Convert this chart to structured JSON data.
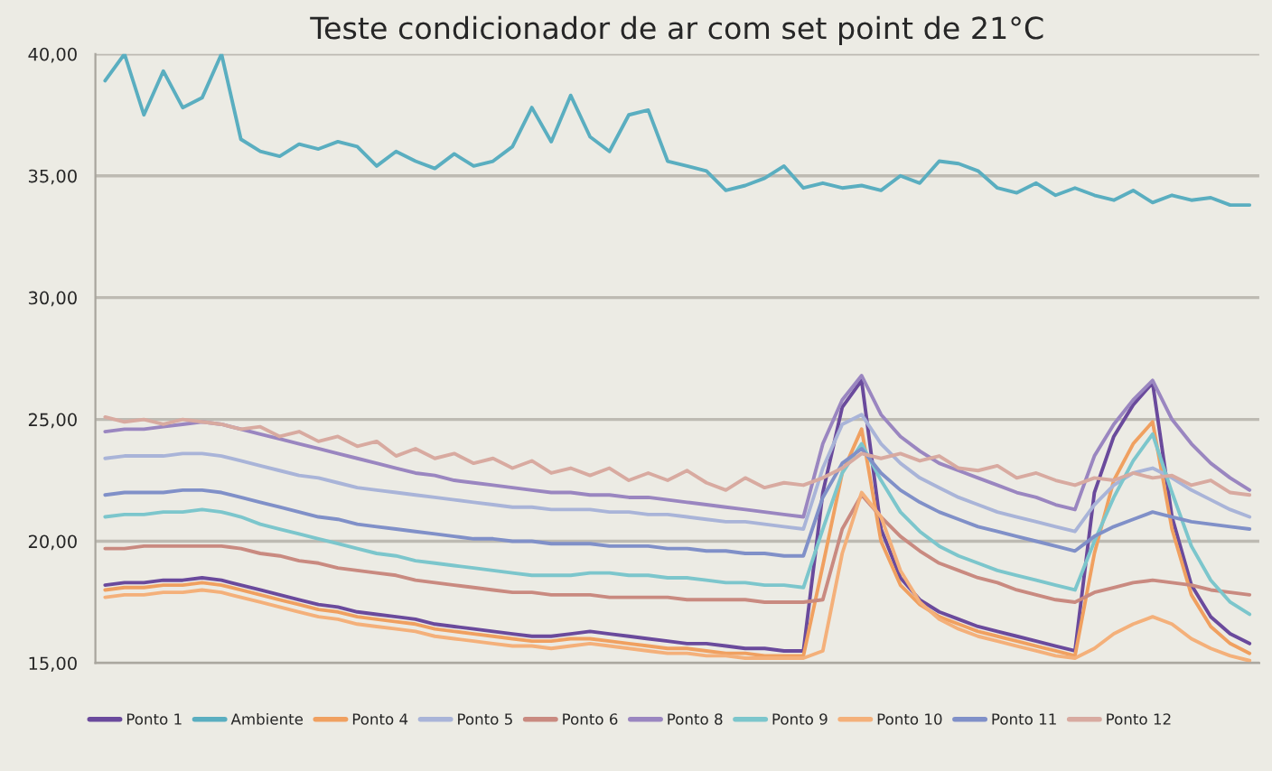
{
  "chart_data": {
    "type": "line",
    "title": "Teste condicionador de ar com set point de 21°C",
    "categories": [
      null,
      null,
      null,
      null,
      null,
      null,
      null,
      null,
      null,
      null,
      null,
      null,
      null,
      null,
      null,
      null,
      null,
      null,
      null,
      null,
      null,
      null,
      null,
      null,
      null,
      null,
      null,
      null,
      null,
      null,
      null,
      null,
      null,
      null,
      null,
      null,
      null,
      null,
      null,
      null,
      null,
      null,
      null,
      null,
      null,
      null,
      null,
      null,
      null,
      null,
      null,
      null,
      null,
      null,
      null,
      null,
      null,
      null,
      null,
      null
    ],
    "ylim": [
      15,
      40
    ],
    "yticks": [
      {
        "value": 15,
        "label": "15,00"
      },
      {
        "value": 20,
        "label": "20,00"
      },
      {
        "value": 25,
        "label": "25,00"
      },
      {
        "value": 30,
        "label": "30,00"
      },
      {
        "value": 35,
        "label": "35,00"
      },
      {
        "value": 40,
        "label": "40,00"
      }
    ],
    "grid": "y",
    "legend": "bottom",
    "marker": "none",
    "line_style": "solid",
    "series": [
      {
        "name": "Ponto 1",
        "color": "#6a4a9c",
        "values": [
          18.2,
          18.3,
          18.3,
          18.4,
          18.4,
          18.5,
          18.4,
          18.2,
          18.0,
          17.8,
          17.6,
          17.4,
          17.3,
          17.1,
          17.0,
          16.9,
          16.8,
          16.6,
          16.5,
          16.4,
          16.3,
          16.2,
          16.1,
          16.1,
          16.2,
          16.3,
          16.2,
          16.1,
          16.0,
          15.9,
          15.8,
          15.8,
          15.7,
          15.6,
          15.6,
          15.5,
          15.5,
          22.0,
          25.5,
          26.6,
          20.5,
          18.5,
          17.6,
          17.1,
          16.8,
          16.5,
          16.3,
          16.1,
          15.9,
          15.7,
          15.5,
          22.0,
          24.3,
          25.6,
          26.5,
          21.0,
          18.2,
          16.9,
          16.2,
          15.8
        ]
      },
      {
        "name": "Ambiente",
        "color": "#5aaec0",
        "values": [
          38.9,
          40,
          37.5,
          39.3,
          37.8,
          38.2,
          40,
          36.5,
          36,
          35.8,
          36.3,
          36.1,
          36.4,
          36.2,
          35.4,
          36,
          35.6,
          35.3,
          35.9,
          35.4,
          35.6,
          36.2,
          37.8,
          36.4,
          38.3,
          36.6,
          36,
          37.5,
          37.7,
          35.6,
          35.4,
          35.2,
          34.4,
          34.6,
          34.9,
          35.4,
          34.5,
          34.7,
          34.5,
          34.6,
          34.4,
          35,
          34.7,
          35.6,
          35.5,
          35.2,
          34.5,
          34.3,
          34.7,
          34.2,
          34.5,
          34.2,
          34.0,
          34.4,
          33.9,
          34.2,
          34.0,
          34.1,
          33.8,
          33.8
        ]
      },
      {
        "name": "Ponto 4",
        "color": "#f0a060",
        "values": [
          18.0,
          18.1,
          18.1,
          18.2,
          18.2,
          18.3,
          18.2,
          18.0,
          17.8,
          17.6,
          17.4,
          17.2,
          17.1,
          16.9,
          16.8,
          16.7,
          16.6,
          16.4,
          16.3,
          16.2,
          16.1,
          16.0,
          15.9,
          15.9,
          16.0,
          16.0,
          15.9,
          15.8,
          15.7,
          15.6,
          15.6,
          15.5,
          15.4,
          15.4,
          15.3,
          15.3,
          15.3,
          19.0,
          22.8,
          24.6,
          20.0,
          18.2,
          17.4,
          16.9,
          16.6,
          16.3,
          16.1,
          15.9,
          15.7,
          15.5,
          15.3,
          19.5,
          22.5,
          24.0,
          24.9,
          20.5,
          17.8,
          16.5,
          15.8,
          15.4
        ]
      },
      {
        "name": "Ponto 5",
        "color": "#a9b4d8",
        "values": [
          23.4,
          23.5,
          23.5,
          23.5,
          23.6,
          23.6,
          23.5,
          23.3,
          23.1,
          22.9,
          22.7,
          22.6,
          22.4,
          22.2,
          22.1,
          22.0,
          21.9,
          21.8,
          21.7,
          21.6,
          21.5,
          21.4,
          21.4,
          21.3,
          21.3,
          21.3,
          21.2,
          21.2,
          21.1,
          21.1,
          21.0,
          20.9,
          20.8,
          20.8,
          20.7,
          20.6,
          20.5,
          23.0,
          24.8,
          25.2,
          24.0,
          23.2,
          22.6,
          22.2,
          21.8,
          21.5,
          21.2,
          21.0,
          20.8,
          20.6,
          20.4,
          21.5,
          22.3,
          22.8,
          23.0,
          22.6,
          22.1,
          21.7,
          21.3,
          21.0
        ]
      },
      {
        "name": "Ponto 6",
        "color": "#c98a80",
        "values": [
          19.7,
          19.7,
          19.8,
          19.8,
          19.8,
          19.8,
          19.8,
          19.7,
          19.5,
          19.4,
          19.2,
          19.1,
          18.9,
          18.8,
          18.7,
          18.6,
          18.4,
          18.3,
          18.2,
          18.1,
          18.0,
          17.9,
          17.9,
          17.8,
          17.8,
          17.8,
          17.7,
          17.7,
          17.7,
          17.7,
          17.6,
          17.6,
          17.6,
          17.6,
          17.5,
          17.5,
          17.5,
          17.6,
          20.5,
          21.9,
          21.0,
          20.2,
          19.6,
          19.1,
          18.8,
          18.5,
          18.3,
          18.0,
          17.8,
          17.6,
          17.5,
          17.9,
          18.1,
          18.3,
          18.4,
          18.3,
          18.2,
          18.0,
          17.9,
          17.8
        ]
      },
      {
        "name": "Ponto 8",
        "color": "#9a86c0",
        "values": [
          24.5,
          24.6,
          24.6,
          24.7,
          24.8,
          24.9,
          24.8,
          24.6,
          24.4,
          24.2,
          24.0,
          23.8,
          23.6,
          23.4,
          23.2,
          23.0,
          22.8,
          22.7,
          22.5,
          22.4,
          22.3,
          22.2,
          22.1,
          22.0,
          22.0,
          21.9,
          21.9,
          21.8,
          21.8,
          21.7,
          21.6,
          21.5,
          21.4,
          21.3,
          21.2,
          21.1,
          21.0,
          24.0,
          25.8,
          26.8,
          25.2,
          24.3,
          23.7,
          23.2,
          22.9,
          22.6,
          22.3,
          22.0,
          21.8,
          21.5,
          21.3,
          23.5,
          24.8,
          25.8,
          26.6,
          25.0,
          24.0,
          23.2,
          22.6,
          22.1
        ]
      },
      {
        "name": "Ponto 9",
        "color": "#7cc6cc",
        "values": [
          21.0,
          21.1,
          21.1,
          21.2,
          21.2,
          21.3,
          21.2,
          21.0,
          20.7,
          20.5,
          20.3,
          20.1,
          19.9,
          19.7,
          19.5,
          19.4,
          19.2,
          19.1,
          19.0,
          18.9,
          18.8,
          18.7,
          18.6,
          18.6,
          18.6,
          18.7,
          18.7,
          18.6,
          18.6,
          18.5,
          18.5,
          18.4,
          18.3,
          18.3,
          18.2,
          18.2,
          18.1,
          20.5,
          22.8,
          24.0,
          22.5,
          21.2,
          20.4,
          19.8,
          19.4,
          19.1,
          18.8,
          18.6,
          18.4,
          18.2,
          18.0,
          20.0,
          21.8,
          23.3,
          24.4,
          22.0,
          19.8,
          18.4,
          17.5,
          17.0
        ]
      },
      {
        "name": "Ponto 10",
        "color": "#f4b07a",
        "values": [
          17.7,
          17.8,
          17.8,
          17.9,
          17.9,
          18.0,
          17.9,
          17.7,
          17.5,
          17.3,
          17.1,
          16.9,
          16.8,
          16.6,
          16.5,
          16.4,
          16.3,
          16.1,
          16.0,
          15.9,
          15.8,
          15.7,
          15.7,
          15.6,
          15.7,
          15.8,
          15.7,
          15.6,
          15.5,
          15.4,
          15.4,
          15.3,
          15.3,
          15.2,
          15.2,
          15.2,
          15.2,
          15.5,
          19.5,
          22.0,
          21.0,
          18.8,
          17.5,
          16.8,
          16.4,
          16.1,
          15.9,
          15.7,
          15.5,
          15.3,
          15.2,
          15.6,
          16.2,
          16.6,
          16.9,
          16.6,
          16.0,
          15.6,
          15.3,
          15.1
        ]
      },
      {
        "name": "Ponto 11",
        "color": "#8090c8",
        "values": [
          21.9,
          22.0,
          22.0,
          22.0,
          22.1,
          22.1,
          22.0,
          21.8,
          21.6,
          21.4,
          21.2,
          21.0,
          20.9,
          20.7,
          20.6,
          20.5,
          20.4,
          20.3,
          20.2,
          20.1,
          20.1,
          20.0,
          20.0,
          19.9,
          19.9,
          19.9,
          19.8,
          19.8,
          19.8,
          19.7,
          19.7,
          19.6,
          19.6,
          19.5,
          19.5,
          19.4,
          19.4,
          21.8,
          23.2,
          23.8,
          22.8,
          22.1,
          21.6,
          21.2,
          20.9,
          20.6,
          20.4,
          20.2,
          20.0,
          19.8,
          19.6,
          20.2,
          20.6,
          20.9,
          21.2,
          21.0,
          20.8,
          20.7,
          20.6,
          20.5
        ]
      },
      {
        "name": "Ponto 12",
        "color": "#d8aaa0",
        "values": [
          25.1,
          24.9,
          25.0,
          24.8,
          25.0,
          24.9,
          24.8,
          24.6,
          24.7,
          24.3,
          24.5,
          24.1,
          24.3,
          23.9,
          24.1,
          23.5,
          23.8,
          23.4,
          23.6,
          23.2,
          23.4,
          23.0,
          23.3,
          22.8,
          23.0,
          22.7,
          23.0,
          22.5,
          22.8,
          22.5,
          22.9,
          22.4,
          22.1,
          22.6,
          22.2,
          22.4,
          22.3,
          22.6,
          23.0,
          23.6,
          23.4,
          23.6,
          23.3,
          23.5,
          23.0,
          22.9,
          23.1,
          22.6,
          22.8,
          22.5,
          22.3,
          22.6,
          22.5,
          22.8,
          22.6,
          22.7,
          22.3,
          22.5,
          22.0,
          21.9
        ]
      }
    ]
  }
}
